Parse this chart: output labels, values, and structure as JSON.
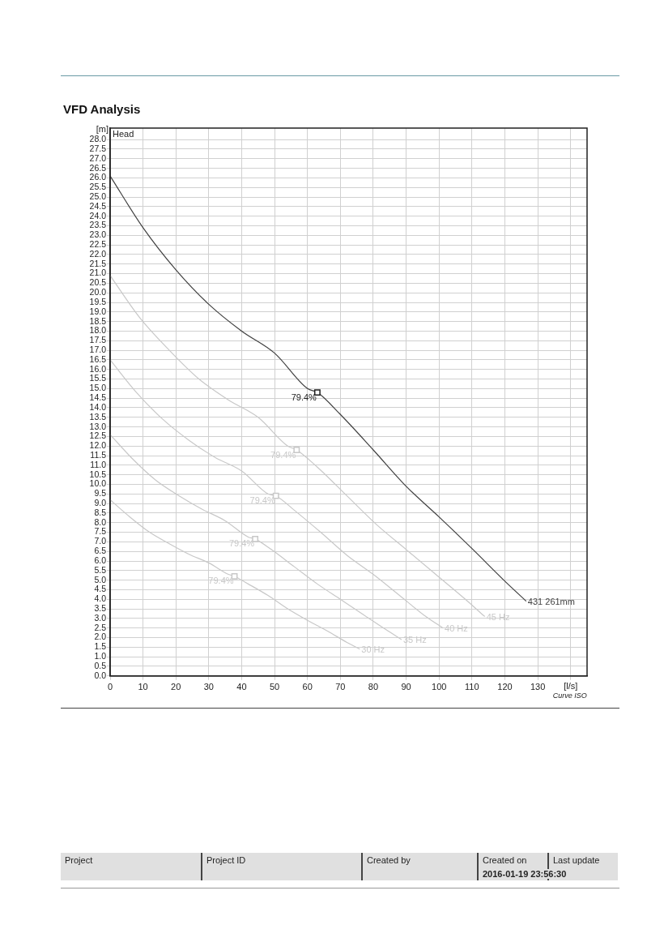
{
  "chart_data": {
    "type": "line",
    "title": "VFD Analysis",
    "xlabel": "[l/s]",
    "ylabel": "[m]",
    "xlim": [
      0,
      145
    ],
    "xticks": [
      0,
      10,
      20,
      30,
      40,
      50,
      60,
      70,
      80,
      90,
      100,
      110,
      120,
      130,
      {
        "value": 140,
        "label": null
      }
    ],
    "ylim": [
      0,
      28.6
    ],
    "yticks": [
      {
        "value": 0,
        "label": "0.0"
      },
      0.5,
      {
        "value": 1,
        "label": "1.0"
      },
      1.5,
      {
        "value": 2,
        "label": "2.0"
      },
      2.5,
      {
        "value": 3,
        "label": "3.0"
      },
      3.5,
      {
        "value": 4,
        "label": "4.0"
      },
      4.5,
      {
        "value": 5,
        "label": "5.0"
      },
      5.5,
      {
        "value": 6,
        "label": "6.0"
      },
      6.5,
      {
        "value": 7,
        "label": "7.0"
      },
      7.5,
      {
        "value": 8,
        "label": "8.0"
      },
      8.5,
      {
        "value": 9,
        "label": "9.0"
      },
      9.5,
      {
        "value": 10,
        "label": "10.0"
      },
      10.5,
      {
        "value": 11,
        "label": "11.0"
      },
      11.5,
      {
        "value": 12,
        "label": "12.0"
      },
      12.5,
      {
        "value": 13,
        "label": "13.0"
      },
      13.5,
      {
        "value": 14,
        "label": "14.0"
      },
      14.5,
      {
        "value": 15,
        "label": "15.0"
      },
      15.5,
      {
        "value": 16,
        "label": "16.0"
      },
      16.5,
      {
        "value": 17,
        "label": "17.0"
      },
      17.5,
      {
        "value": 18,
        "label": "18.0"
      },
      18.5,
      {
        "value": 19,
        "label": "19.0"
      },
      19.5,
      {
        "value": 20,
        "label": "20.0"
      },
      20.5,
      {
        "value": 21,
        "label": "21.0"
      },
      21.5,
      {
        "value": 22,
        "label": "22.0"
      },
      22.5,
      {
        "value": 23,
        "label": "23.0"
      },
      23.5,
      {
        "value": 24,
        "label": "24.0"
      },
      24.5,
      {
        "value": 25,
        "label": "25.0"
      },
      25.5,
      {
        "value": 26,
        "label": "26.0"
      },
      26.5,
      {
        "value": 27,
        "label": "27.0"
      },
      27.5,
      {
        "value": 28,
        "label": "28.0"
      }
    ],
    "grid": true,
    "legend": false,
    "marker": "none",
    "line_style": "solid",
    "series": [
      {
        "name": "431 261mm",
        "color": "#404040",
        "x": [
          0,
          10,
          20,
          30,
          40,
          50,
          60,
          63,
          70,
          80,
          90,
          100,
          110,
          120,
          126.5
        ],
        "values": [
          26.1,
          23.4,
          21.2,
          19.4,
          18.0,
          16.85,
          15.0,
          14.8,
          13.65,
          11.8,
          9.9,
          8.3,
          6.65,
          4.95,
          3.9
        ]
      },
      {
        "name": "45 Hz",
        "color": "#c8c8c8",
        "x": [
          0,
          9,
          18,
          27,
          36,
          45,
          54,
          56.7,
          63,
          72,
          81,
          90,
          99,
          108,
          113.9
        ],
        "values": [
          20.9,
          18.7,
          17.0,
          15.5,
          14.4,
          13.5,
          12.0,
          11.8,
          10.9,
          9.4,
          7.9,
          6.6,
          5.3,
          4.0,
          3.1
        ]
      },
      {
        "name": "40 Hz",
        "color": "#c8c8c8",
        "x": [
          0,
          8,
          16,
          24,
          32,
          40,
          48,
          50.4,
          56,
          64,
          72,
          80,
          88,
          96,
          101.2
        ],
        "values": [
          16.5,
          14.8,
          13.4,
          12.3,
          11.4,
          10.7,
          9.5,
          9.4,
          8.65,
          7.5,
          6.3,
          5.3,
          4.2,
          3.1,
          2.5
        ]
      },
      {
        "name": "35 Hz",
        "color": "#c8c8c8",
        "x": [
          0,
          7,
          14,
          21,
          28,
          35,
          42,
          44.1,
          49,
          56,
          63,
          70,
          77,
          84,
          88.6
        ],
        "values": [
          12.6,
          11.3,
          10.2,
          9.4,
          8.7,
          8.1,
          7.25,
          7.15,
          6.6,
          5.7,
          4.8,
          4.0,
          3.2,
          2.4,
          1.9
        ]
      },
      {
        "name": "30 Hz",
        "color": "#c8c8c8",
        "x": [
          0,
          6,
          12,
          18,
          24,
          30,
          36,
          37.8,
          42,
          48,
          54,
          60,
          66,
          72,
          75.9
        ],
        "values": [
          9.2,
          8.3,
          7.5,
          6.9,
          6.35,
          5.9,
          5.3,
          5.2,
          4.8,
          4.2,
          3.5,
          2.9,
          2.35,
          1.75,
          1.4
        ]
      },
      {
        "type": "scatter",
        "marker": "square",
        "colors": [
          "#202020",
          "#c8c8c8",
          "#c8c8c8",
          "#c8c8c8",
          "#c8c8c8"
        ],
        "x": [
          63,
          56.7,
          50.4,
          44.1,
          37.8
        ],
        "values": [
          14.8,
          11.8,
          9.4,
          7.15,
          5.2
        ]
      }
    ],
    "annotations": [
      "Head",
      "Curve ISO",
      "Project",
      "Project ID",
      "Created by",
      "Created on",
      "Last update",
      "2016-01-19 23:56:30",
      {
        "text": "79.4%",
        "x": 63,
        "y": 14.8
      },
      {
        "text": "79.4%",
        "x": 56.7,
        "y": 11.8
      },
      {
        "text": "79.4%",
        "x": 50.4,
        "y": 9.4
      },
      {
        "text": "79.4%",
        "x": 44.1,
        "y": 7.15
      },
      {
        "text": "79.4%",
        "x": 37.8,
        "y": 5.2
      }
    ]
  }
}
